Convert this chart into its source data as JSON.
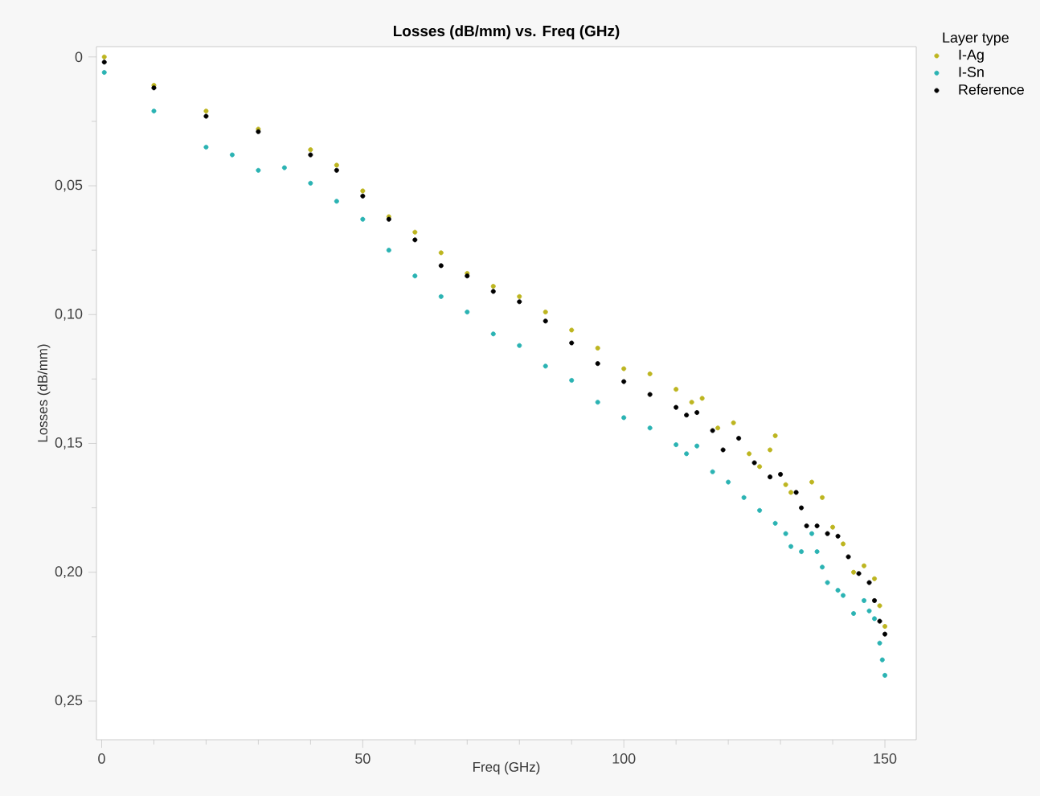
{
  "chart_data": {
    "type": "scatter",
    "title": "Losses (dB/mm) vs. Freq (GHz)",
    "xlabel": "Freq (GHz)",
    "ylabel": "Losses (dB/mm)",
    "legend_title": "Layer type",
    "legend": "top right",
    "grid": false,
    "xlim": [
      -1,
      156
    ],
    "ylim": [
      0.265,
      -0.004
    ],
    "xticks": [
      0,
      {
        "value": 10,
        "label": null
      },
      {
        "value": 20,
        "label": null
      },
      {
        "value": 30,
        "label": null
      },
      {
        "value": 40,
        "label": null
      },
      50,
      {
        "value": 60,
        "label": null
      },
      {
        "value": 70,
        "label": null
      },
      {
        "value": 80,
        "label": null
      },
      {
        "value": 90,
        "label": null
      },
      100,
      {
        "value": 110,
        "label": null
      },
      {
        "value": 120,
        "label": null
      },
      {
        "value": 130,
        "label": null
      },
      {
        "value": 140,
        "label": null
      },
      150
    ],
    "yticks": [
      0,
      {
        "value": 0.025,
        "label": null
      },
      {
        "value": 0.05,
        "label": "0,05"
      },
      {
        "value": 0.075,
        "label": null
      },
      {
        "value": 0.1,
        "label": "0,10"
      },
      {
        "value": 0.125,
        "label": null
      },
      {
        "value": 0.15,
        "label": "0,15"
      },
      {
        "value": 0.175,
        "label": null
      },
      {
        "value": 0.2,
        "label": "0,20"
      },
      {
        "value": 0.225,
        "label": null
      },
      {
        "value": 0.25,
        "label": "0,25"
      }
    ],
    "series": [
      {
        "name": "I-Ag",
        "color": "#bdb520",
        "x": [
          0.5,
          10,
          20,
          30,
          40,
          45,
          50,
          55,
          60,
          65,
          70,
          75,
          80,
          85,
          90,
          95,
          100,
          105,
          110,
          113,
          115,
          118,
          121,
          124,
          126,
          128,
          129,
          131,
          132,
          136,
          138,
          140,
          142,
          144,
          146,
          148,
          149,
          150
        ],
        "values": [
          0.0,
          0.011,
          0.021,
          0.028,
          0.036,
          0.042,
          0.052,
          0.062,
          0.068,
          0.076,
          0.084,
          0.089,
          0.093,
          0.099,
          0.106,
          0.113,
          0.121,
          0.123,
          0.129,
          0.134,
          0.1325,
          0.144,
          0.142,
          0.154,
          0.159,
          0.1525,
          0.147,
          0.166,
          0.169,
          0.165,
          0.171,
          0.1825,
          0.189,
          0.2,
          0.1975,
          0.2025,
          0.213,
          0.221
        ]
      },
      {
        "name": "I-Sn",
        "color": "#2bb3b3",
        "x": [
          0.5,
          10,
          20,
          25,
          30,
          35,
          40,
          45,
          50,
          55,
          60,
          65,
          70,
          75,
          80,
          85,
          90,
          95,
          100,
          105,
          110,
          112,
          114,
          117,
          120,
          123,
          126,
          129,
          131,
          132,
          134,
          136,
          137,
          138,
          139,
          141,
          142,
          144,
          146,
          147,
          148,
          149,
          149.5,
          150
        ],
        "values": [
          0.006,
          0.021,
          0.035,
          0.038,
          0.044,
          0.043,
          0.049,
          0.056,
          0.063,
          0.075,
          0.085,
          0.093,
          0.099,
          0.1075,
          0.112,
          0.12,
          0.1255,
          0.134,
          0.14,
          0.144,
          0.1505,
          0.154,
          0.151,
          0.161,
          0.165,
          0.171,
          0.176,
          0.181,
          0.185,
          0.19,
          0.192,
          0.185,
          0.192,
          0.198,
          0.204,
          0.207,
          0.209,
          0.216,
          0.211,
          0.215,
          0.218,
          0.2275,
          0.234,
          0.24
        ]
      },
      {
        "name": "Reference",
        "color": "#000000",
        "x": [
          0.5,
          10,
          20,
          30,
          40,
          45,
          50,
          55,
          60,
          65,
          70,
          75,
          80,
          85,
          90,
          95,
          100,
          105,
          110,
          112,
          114,
          117,
          119,
          122,
          125,
          128,
          130,
          133,
          134,
          135,
          137,
          139,
          141,
          143,
          145,
          147,
          148,
          149,
          150
        ],
        "values": [
          0.002,
          0.012,
          0.023,
          0.029,
          0.038,
          0.044,
          0.054,
          0.063,
          0.071,
          0.081,
          0.085,
          0.091,
          0.095,
          0.1025,
          0.111,
          0.119,
          0.126,
          0.131,
          0.136,
          0.139,
          0.138,
          0.145,
          0.1525,
          0.148,
          0.1575,
          0.163,
          0.162,
          0.169,
          0.175,
          0.182,
          0.182,
          0.185,
          0.186,
          0.194,
          0.2005,
          0.204,
          0.211,
          0.219,
          0.224
        ]
      }
    ]
  }
}
